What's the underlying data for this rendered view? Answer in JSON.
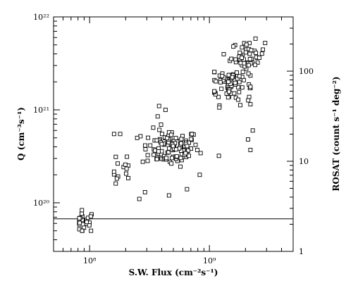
{
  "chart_data": {
    "type": "scatter",
    "title": "",
    "xlabel": "S.W. Flux (cm⁻²s⁻¹)",
    "ylabel_left": "Q (cm⁻³s⁻¹)",
    "ylabel_right": "ROSAT (count s⁻¹ deg⁻²)",
    "x_scale": "log",
    "y_scale": "log",
    "xlim": [
      50000000.0,
      5000000000.0
    ],
    "ylim_left": [
      3e+19,
      1e+22
    ],
    "ylim_right": [
      1,
      400
    ],
    "x_ticks": [
      {
        "value": 100000000.0,
        "label": "10⁸"
      },
      {
        "value": 1000000000.0,
        "label": "10⁹"
      }
    ],
    "y_ticks_left": [
      {
        "value": 1e+20,
        "label": "10²⁰"
      },
      {
        "value": 1e+21,
        "label": "10²¹"
      },
      {
        "value": 1e+22,
        "label": "10²²"
      }
    ],
    "y_ticks_right": [
      {
        "value": 1,
        "label": "1"
      },
      {
        "value": 10,
        "label": "10"
      },
      {
        "value": 100,
        "label": "100"
      }
    ],
    "reference_line": {
      "y_right": 2.3
    },
    "marker": "open-square",
    "grid": false,
    "legend": "none",
    "clusters": [
      {
        "x_center": 90000000.0,
        "y_center": 6.3e+19,
        "x_spread": 0.05,
        "y_spread": 0.06,
        "n": 26,
        "x_min": 82000000.0,
        "x_max": 120000000.0,
        "y_min": 5e+19,
        "y_max": 9e+19
      },
      {
        "x_center": 190000000.0,
        "y_center": 2.2e+20,
        "x_spread": 0.05,
        "y_spread": 0.1,
        "n": 14,
        "x_min": 160000000.0,
        "x_max": 210000000.0,
        "y_min": 1.6e+20,
        "y_max": 5.5e+20
      },
      {
        "x_center": 470000000.0,
        "y_center": 3.9e+20,
        "x_spread": 0.12,
        "y_spread": 0.1,
        "n": 110,
        "x_min": 240000000.0,
        "x_max": 950000000.0,
        "y_min": 1.1e+20,
        "y_max": 1.1e+21
      },
      {
        "x_center": 1500000000.0,
        "y_center": 1.9e+21,
        "x_spread": 0.09,
        "y_spread": 0.11,
        "n": 80,
        "x_min": 1100000000.0,
        "x_max": 2200000000.0,
        "y_min": 1e+21,
        "y_max": 3.5e+21
      },
      {
        "x_center": 2100000000.0,
        "y_center": 3.8e+21,
        "x_spread": 0.07,
        "y_spread": 0.08,
        "n": 50,
        "x_min": 1300000000.0,
        "x_max": 3800000000.0,
        "y_min": 2.3e+21,
        "y_max": 6e+21
      }
    ],
    "outliers": [
      {
        "x": 2300000000.0,
        "y": 6e+20
      },
      {
        "x": 2200000000.0,
        "y": 3.7e+20
      },
      {
        "x": 2100000000.0,
        "y": 4.8e+20
      },
      {
        "x": 1200000000.0,
        "y": 3.2e+20
      },
      {
        "x": 830000000.0,
        "y": 2e+20
      },
      {
        "x": 380000000.0,
        "y": 1.1e+21
      },
      {
        "x": 430000000.0,
        "y": 1e+21
      },
      {
        "x": 370000000.0,
        "y": 8.5e+20
      },
      {
        "x": 260000000.0,
        "y": 1.1e+20
      },
      {
        "x": 290000000.0,
        "y": 1.3e+20
      },
      {
        "x": 460000000.0,
        "y": 1.2e+20
      },
      {
        "x": 650000000.0,
        "y": 1.4e+20
      },
      {
        "x": 160000000.0,
        "y": 5.5e+20
      },
      {
        "x": 180000000.0,
        "y": 5.5e+20
      }
    ]
  }
}
